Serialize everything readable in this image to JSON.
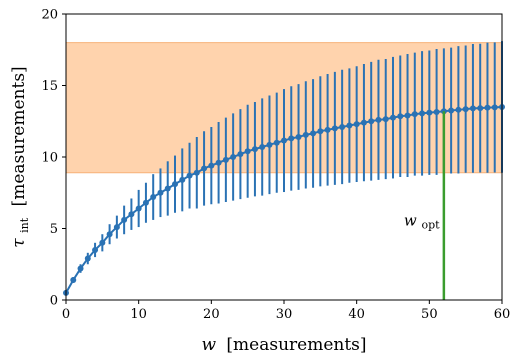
{
  "chart_data": {
    "type": "line",
    "title": "",
    "xlabel": {
      "main": "w",
      "unit": "[measurements]"
    },
    "ylabel": {
      "main": "τ",
      "sub": "int",
      "unit": "[measurements]"
    },
    "xlim": [
      0,
      60
    ],
    "ylim": [
      0,
      20
    ],
    "xticks": [
      "0",
      "10",
      "20",
      "30",
      "40",
      "50",
      "60"
    ],
    "yticks": [
      "0",
      "5",
      "10",
      "15",
      "20"
    ],
    "grid": false,
    "colors": {
      "series": "#2a72b4",
      "band": "#ffd3ad",
      "band_edge": "#f7b27a",
      "marker_line": "#3a9c2e"
    },
    "band": {
      "lower": 8.9,
      "upper": 18.0
    },
    "series": [
      {
        "x": [
          0,
          1,
          2,
          3,
          4,
          5,
          6,
          7,
          8,
          9,
          10,
          11,
          12,
          13,
          14,
          15,
          16,
          17,
          18,
          19,
          20,
          21,
          22,
          23,
          24,
          25,
          26,
          27,
          28,
          29,
          30,
          31,
          32,
          33,
          34,
          35,
          36,
          37,
          38,
          39,
          40,
          41,
          42,
          43,
          44,
          45,
          46,
          47,
          48,
          49,
          50,
          51,
          52,
          53,
          54,
          55,
          56,
          57,
          58,
          59,
          60
        ],
        "y": [
          0.5,
          1.4,
          2.2,
          2.9,
          3.5,
          4.0,
          4.6,
          5.1,
          5.6,
          6.0,
          6.4,
          6.8,
          7.2,
          7.5,
          7.8,
          8.1,
          8.4,
          8.7,
          8.9,
          9.2,
          9.4,
          9.6,
          9.8,
          10.0,
          10.2,
          10.4,
          10.55,
          10.7,
          10.85,
          11.0,
          11.15,
          11.3,
          11.4,
          11.55,
          11.65,
          11.8,
          11.9,
          12.0,
          12.1,
          12.2,
          12.3,
          12.4,
          12.5,
          12.6,
          12.65,
          12.75,
          12.85,
          12.9,
          13.0,
          13.05,
          13.1,
          13.15,
          13.2,
          13.25,
          13.3,
          13.35,
          13.4,
          13.42,
          13.45,
          13.47,
          13.5
        ],
        "err": [
          0.1,
          0.2,
          0.3,
          0.4,
          0.5,
          0.6,
          0.7,
          0.8,
          1.0,
          1.1,
          1.3,
          1.4,
          1.6,
          1.7,
          1.9,
          2.0,
          2.2,
          2.3,
          2.5,
          2.6,
          2.7,
          2.85,
          2.95,
          3.05,
          3.15,
          3.25,
          3.3,
          3.4,
          3.45,
          3.5,
          3.6,
          3.65,
          3.7,
          3.75,
          3.8,
          3.85,
          3.9,
          3.95,
          4.0,
          4.0,
          4.05,
          4.1,
          4.15,
          4.2,
          4.2,
          4.25,
          4.25,
          4.3,
          4.3,
          4.35,
          4.35,
          4.4,
          4.4,
          4.4,
          4.45,
          4.45,
          4.5,
          4.5,
          4.55,
          4.55,
          4.6
        ]
      }
    ],
    "annotations": [
      {
        "type": "vline",
        "x": 52,
        "y_from": 0,
        "y_to": 13.2,
        "text": "w",
        "sub": "opt",
        "text_x": 46.5,
        "text_y": 5.2
      }
    ]
  }
}
